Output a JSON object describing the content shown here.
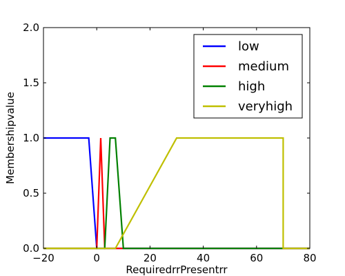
{
  "chart_data": {
    "type": "line",
    "title": "",
    "xlabel": "RequiredrrPresentrr",
    "ylabel": "Membershipvalue",
    "xlim": [
      -20,
      80
    ],
    "ylim": [
      0,
      2
    ],
    "xticks": [
      -20,
      0,
      20,
      40,
      60,
      80
    ],
    "xtick_labels": [
      "−20",
      "0",
      "20",
      "40",
      "60",
      "80"
    ],
    "yticks": [
      0,
      0.5,
      1,
      1.5,
      2
    ],
    "ytick_labels": [
      "0.0",
      "0.5",
      "1.0",
      "1.5",
      "2.0"
    ],
    "grid": false,
    "legend_position": "top-right",
    "series": [
      {
        "name": "low",
        "color": "#0000ff",
        "x": [
          -20,
          -3,
          0,
          80
        ],
        "y": [
          1,
          1,
          0,
          0
        ]
      },
      {
        "name": "medium",
        "color": "#ff0000",
        "x": [
          -20,
          0,
          1.5,
          3,
          80
        ],
        "y": [
          0,
          0,
          1,
          0,
          0
        ]
      },
      {
        "name": "high",
        "color": "#008000",
        "x": [
          -20,
          3,
          5,
          7,
          10,
          80
        ],
        "y": [
          0,
          0,
          1,
          1,
          0,
          0
        ]
      },
      {
        "name": "veryhigh",
        "color": "#bfbf00",
        "x": [
          -20,
          7,
          30,
          70,
          70,
          80
        ],
        "y": [
          0,
          0,
          1,
          1,
          0,
          0
        ]
      }
    ]
  }
}
